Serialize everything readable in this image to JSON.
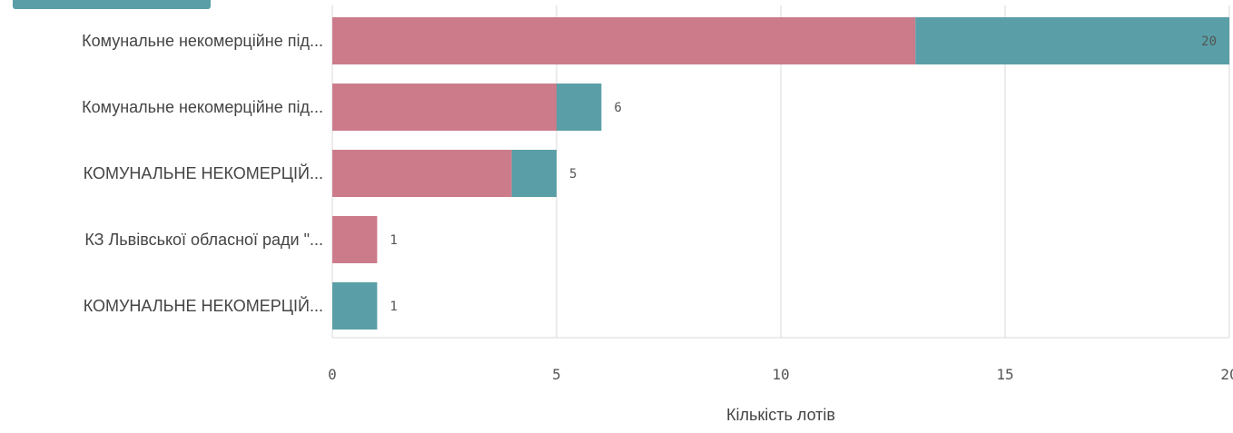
{
  "chart_data": {
    "type": "bar",
    "orientation": "horizontal",
    "stacked": true,
    "categories": [
      "Комунальне некомерційне під...",
      "Комунальне некомерційне під...",
      "КОМУНАЛЬНЕ НЕКОМЕРЦІЙ...",
      "КЗ Львівської обласної ради \"...",
      "КОМУНАЛЬНЕ НЕКОМЕРЦІЙ..."
    ],
    "series": [
      {
        "color": "#cc7b8b",
        "values": [
          13,
          5,
          4,
          1,
          0
        ]
      },
      {
        "color": "#5a9fa7",
        "values": [
          7,
          1,
          1,
          0,
          1
        ]
      }
    ],
    "totals": [
      "20",
      "6",
      "5",
      "1",
      "1"
    ],
    "xlabel": "Кількість лотів",
    "xlim": [
      0,
      20
    ],
    "xticks": [
      "0",
      "5",
      "10",
      "15",
      "20"
    ],
    "grid": true,
    "legend": "top-left"
  }
}
